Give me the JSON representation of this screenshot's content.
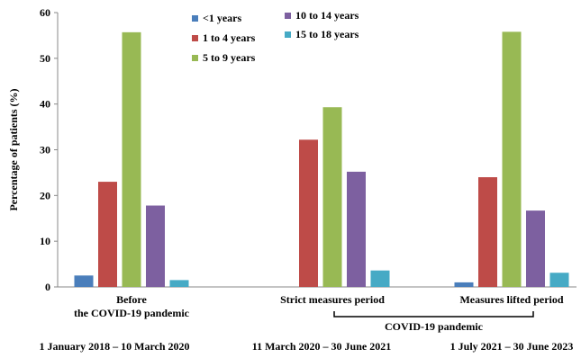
{
  "chart_data": {
    "type": "bar",
    "ylabel": "Percentage of patients (%)",
    "xlabel": "",
    "ylim": [
      0,
      60
    ],
    "yticks": [
      0,
      10,
      20,
      30,
      40,
      50,
      60
    ],
    "grid": false,
    "legend_position": "top-center",
    "categories": [
      [
        "Before",
        "the COVID-19 pandemic"
      ],
      [
        "Strict measures period"
      ],
      [
        "Measures lifted period"
      ]
    ],
    "series": [
      {
        "name": "<1 years",
        "color": "#4a7ebb",
        "values": [
          2.5,
          0,
          1.0
        ]
      },
      {
        "name": "1 to 4 years",
        "color": "#be4b48",
        "values": [
          23,
          32.2,
          24
        ]
      },
      {
        "name": "5 to 9 years",
        "color": "#98b954",
        "values": [
          55.7,
          39.3,
          55.8
        ]
      },
      {
        "name": "10 to 14 years",
        "color": "#7d60a0",
        "values": [
          17.8,
          25.2,
          16.7
        ]
      },
      {
        "name": "15 to 18 years",
        "color": "#46aac5",
        "values": [
          1.5,
          3.6,
          3.1
        ]
      }
    ],
    "annotations": {
      "bracket_label": "COVID-19 pandemic",
      "periods": [
        "1 January 2018 – 10 March 2020",
        "11 March 2020 – 30 June 2021",
        "1 July 2021 – 30 June 2023"
      ]
    }
  }
}
